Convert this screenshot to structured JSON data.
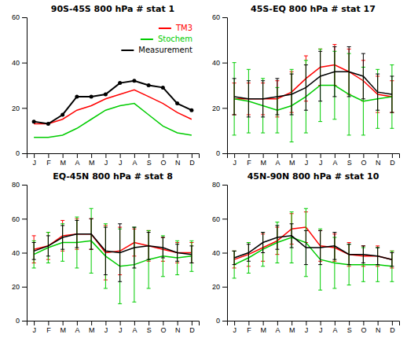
{
  "chart_data": [
    {
      "type": "line",
      "title": "90S-45S 800 hPa # stat 1",
      "categories": [
        "J",
        "F",
        "M",
        "A",
        "M",
        "J",
        "J",
        "A",
        "S",
        "O",
        "N",
        "D"
      ],
      "series": [
        {
          "name": "TM3",
          "color": "#ff0000",
          "values": [
            13,
            13,
            15,
            19,
            21,
            24,
            26,
            28,
            25,
            22,
            18,
            15
          ]
        },
        {
          "name": "Stochem",
          "color": "#00cc00",
          "values": [
            7,
            7,
            8,
            11,
            15,
            19,
            21,
            22,
            17,
            12,
            9,
            8
          ]
        },
        {
          "name": "Measurement",
          "color": "#000000",
          "marker": "circle",
          "values": [
            14,
            13,
            17,
            25,
            25,
            26,
            31,
            32,
            30,
            29,
            22,
            19
          ]
        }
      ],
      "ylim": [
        0,
        60
      ],
      "yticks": [
        0,
        20,
        40,
        60
      ],
      "legend": "upper right"
    },
    {
      "type": "line",
      "title": "45S-EQ 800 hPa # stat 17",
      "categories": [
        "J",
        "F",
        "M",
        "A",
        "M",
        "J",
        "J",
        "A",
        "S",
        "O",
        "N",
        "D"
      ],
      "series": [
        {
          "color": "#ff0000",
          "values": [
            24,
            24,
            24,
            24,
            27,
            33,
            38,
            39,
            36,
            32,
            26,
            25
          ],
          "errors": [
            7,
            7,
            7,
            8,
            9,
            10,
            8,
            9,
            10,
            9,
            8,
            7
          ]
        },
        {
          "color": "#00cc00",
          "values": [
            24,
            23,
            21,
            19,
            21,
            25,
            30,
            30,
            26,
            23,
            24,
            25
          ],
          "errors": [
            16,
            14,
            12,
            10,
            16,
            16,
            16,
            15,
            18,
            15,
            13,
            14
          ]
        },
        {
          "color": "#000000",
          "values": [
            25,
            24,
            24,
            25,
            26,
            29,
            34,
            36,
            36,
            34,
            27,
            26
          ],
          "errors": [
            8,
            8,
            8,
            8,
            9,
            10,
            11,
            11,
            11,
            10,
            8,
            8
          ]
        }
      ],
      "ylim": [
        0,
        60
      ],
      "yticks": [
        0,
        20,
        40,
        60
      ]
    },
    {
      "type": "line",
      "title": "EQ-45N 800 hPa # stat 8",
      "categories": [
        "J",
        "F",
        "M",
        "A",
        "M",
        "J",
        "J",
        "A",
        "S",
        "O",
        "N",
        "D"
      ],
      "series": [
        {
          "color": "#ff0000",
          "values": [
            42,
            44,
            50,
            51,
            51,
            40,
            41,
            46,
            44,
            42,
            40,
            40
          ],
          "errors": [
            8,
            8,
            9,
            9,
            9,
            16,
            14,
            8,
            9,
            7,
            6,
            6
          ]
        },
        {
          "color": "#00cc00",
          "values": [
            39,
            43,
            46,
            46,
            47,
            38,
            32,
            33,
            36,
            38,
            37,
            38
          ],
          "errors": [
            8,
            9,
            11,
            15,
            19,
            19,
            22,
            22,
            17,
            12,
            10,
            9
          ]
        },
        {
          "color": "#000000",
          "values": [
            41,
            44,
            49,
            51,
            51,
            41,
            40,
            43,
            44,
            43,
            40,
            39
          ],
          "errors": [
            5,
            6,
            7,
            8,
            9,
            14,
            17,
            12,
            8,
            6,
            5,
            5
          ]
        }
      ],
      "ylim": [
        0,
        80
      ],
      "yticks": [
        0,
        20,
        40,
        60,
        80
      ]
    },
    {
      "type": "line",
      "title": "45N-90N 800 hPa # stat 10",
      "categories": [
        "J",
        "F",
        "M",
        "A",
        "M",
        "J",
        "J",
        "A",
        "S",
        "O",
        "N",
        "D"
      ],
      "series": [
        {
          "color": "#ff0000",
          "values": [
            36,
            39,
            43,
            47,
            54,
            55,
            44,
            43,
            39,
            38,
            38,
            36
          ],
          "errors": [
            5,
            7,
            8,
            8,
            9,
            9,
            9,
            8,
            7,
            6,
            6,
            5
          ]
        },
        {
          "color": "#00cc00",
          "values": [
            33,
            37,
            42,
            46,
            49,
            46,
            36,
            34,
            33,
            33,
            33,
            32
          ],
          "errors": [
            8,
            9,
            10,
            12,
            15,
            20,
            18,
            15,
            12,
            10,
            10,
            9
          ]
        },
        {
          "color": "#000000",
          "values": [
            37,
            40,
            46,
            49,
            50,
            43,
            43,
            44,
            39,
            39,
            38,
            36
          ],
          "errors": [
            4,
            5,
            6,
            7,
            7,
            10,
            10,
            8,
            6,
            5,
            5,
            4
          ]
        }
      ],
      "ylim": [
        0,
        80
      ],
      "yticks": [
        0,
        20,
        40,
        60,
        80
      ]
    }
  ]
}
